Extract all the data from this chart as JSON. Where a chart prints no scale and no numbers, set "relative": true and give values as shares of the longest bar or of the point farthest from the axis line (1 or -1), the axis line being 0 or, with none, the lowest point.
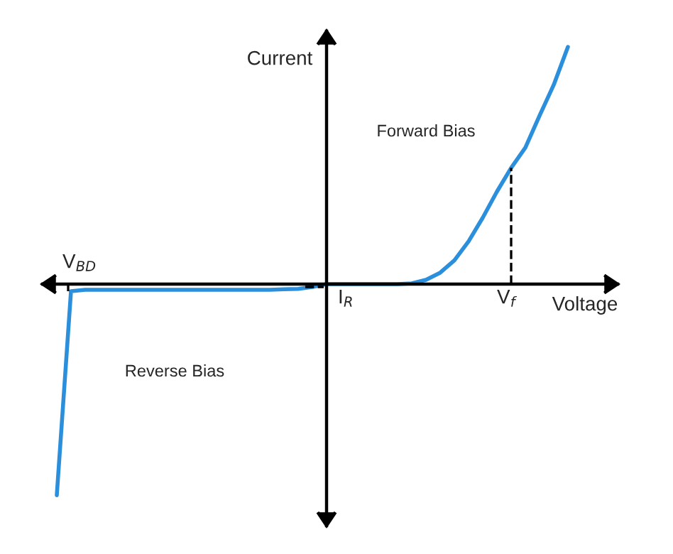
{
  "chart_data": {
    "type": "line",
    "relative": true,
    "xlabel": "Voltage",
    "ylabel": "Current",
    "categories": [
      null,
      null,
      null,
      null,
      null,
      null,
      null,
      null,
      null,
      null,
      null,
      null,
      null,
      null,
      null,
      null,
      null,
      null,
      null,
      null,
      null,
      null,
      null,
      null,
      null,
      null,
      null,
      null,
      null,
      null,
      null,
      null,
      null,
      null,
      null,
      null,
      null
    ],
    "series": [
      {
        "color": "#2b8fdb",
        "values": [
          -0.89,
          -0.03,
          -0.024,
          -0.024,
          -0.024,
          -0.024,
          -0.024,
          -0.024,
          -0.024,
          -0.024,
          -0.024,
          -0.024,
          -0.024,
          -0.024,
          -0.024,
          -0.024,
          -0.022,
          -0.02,
          -0.012,
          0,
          0,
          0,
          0,
          0,
          0,
          0.003,
          0.018,
          0.048,
          0.1,
          0.18,
          0.28,
          0.39,
          0.49,
          0.575,
          0.71,
          0.84,
          1.0
        ]
      }
    ],
    "annotations": [
      "Forward Bias",
      "Reverse Bias",
      "V$_{BD}$",
      "I$_{R}$",
      "V$_{f}$"
    ],
    "marker": "none",
    "line_style": "solid"
  }
}
